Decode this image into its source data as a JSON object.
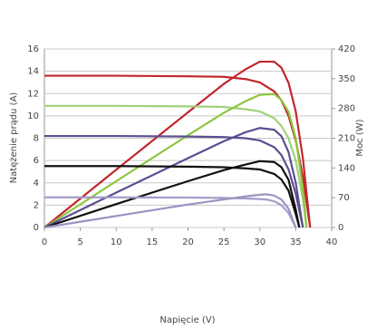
{
  "chart_data": {
    "type": "line",
    "xlabel": "Napięcie (V)",
    "ylabel": "Natężenie prądu (A)",
    "y2label": "Moc (W)",
    "xlim": [
      0,
      40
    ],
    "xticks": [
      0,
      5,
      10,
      15,
      20,
      25,
      30,
      35,
      40
    ],
    "ylim": [
      0,
      16
    ],
    "yticks": [
      0,
      2,
      4,
      6,
      8,
      10,
      12,
      14,
      16
    ],
    "y2lim": [
      0,
      420
    ],
    "y2ticks": [
      0,
      70,
      140,
      210,
      280,
      350,
      420
    ],
    "grid": true,
    "series": [
      {
        "color": "#c1272d",
        "x": [
          0,
          10,
          20,
          25,
          28,
          30,
          32,
          33,
          34,
          35,
          36,
          37
        ],
        "values": [
          13.6,
          13.6,
          13.55,
          13.5,
          13.3,
          13.0,
          12.2,
          11.4,
          10,
          7.8,
          4.5,
          0
        ]
      },
      {
        "color": "#c1272d",
        "axis": "y2",
        "x": [
          0,
          10,
          20,
          25,
          28,
          30,
          32,
          33,
          34,
          35,
          36,
          37
        ],
        "values": [
          0,
          136,
          271,
          338,
          372,
          390,
          390,
          376,
          340,
          273,
          162,
          0
        ]
      },
      {
        "color": "#9fd27a",
        "x": [
          0,
          10,
          20,
          25,
          28,
          30,
          32,
          33,
          34,
          35,
          36,
          36.5
        ],
        "values": [
          10.9,
          10.9,
          10.85,
          10.8,
          10.6,
          10.4,
          9.8,
          9.1,
          8.0,
          6.0,
          2.5,
          0
        ]
      },
      {
        "color": "#8dc63f",
        "axis": "y2",
        "x": [
          0,
          10,
          20,
          25,
          28,
          30,
          32,
          33,
          34,
          35,
          36,
          36.5
        ],
        "values": [
          0,
          109,
          217,
          270,
          297,
          312,
          314,
          300,
          272,
          210,
          90,
          0
        ]
      },
      {
        "color": "#5c4f91",
        "x": [
          0,
          10,
          20,
          25,
          28,
          30,
          32,
          33,
          34,
          35,
          36
        ],
        "values": [
          8.2,
          8.2,
          8.15,
          8.1,
          8.0,
          7.8,
          7.2,
          6.5,
          5.2,
          3.0,
          0
        ]
      },
      {
        "color": "#5c4f91",
        "axis": "y2",
        "x": [
          0,
          10,
          20,
          25,
          28,
          30,
          32,
          33,
          34,
          35,
          36
        ],
        "values": [
          0,
          82,
          163,
          203,
          224,
          234,
          230,
          215,
          177,
          105,
          0
        ]
      },
      {
        "color": "#111111",
        "x": [
          0,
          10,
          20,
          25,
          28,
          30,
          32,
          33,
          34,
          35,
          35.5
        ],
        "values": [
          5.5,
          5.5,
          5.45,
          5.4,
          5.3,
          5.2,
          4.8,
          4.3,
          3.3,
          1.2,
          0
        ]
      },
      {
        "color": "#111111",
        "axis": "y2",
        "x": [
          0,
          10,
          20,
          25,
          28,
          30,
          32,
          33,
          34,
          35,
          35.5
        ],
        "values": [
          0,
          55,
          109,
          135,
          148,
          156,
          154,
          142,
          112,
          42,
          0
        ]
      },
      {
        "color": "#a39dc8",
        "x": [
          0,
          10,
          20,
          25,
          28,
          30,
          31,
          32,
          33,
          34,
          35
        ],
        "values": [
          2.7,
          2.7,
          2.68,
          2.65,
          2.6,
          2.55,
          2.5,
          2.35,
          2.0,
          1.3,
          0
        ]
      },
      {
        "color": "#9b93c0",
        "axis": "y2",
        "x": [
          0,
          10,
          20,
          25,
          28,
          30,
          31,
          32,
          33,
          34,
          35
        ],
        "values": [
          0,
          27,
          54,
          66,
          73,
          77,
          78,
          75,
          66,
          44,
          0
        ]
      }
    ]
  }
}
